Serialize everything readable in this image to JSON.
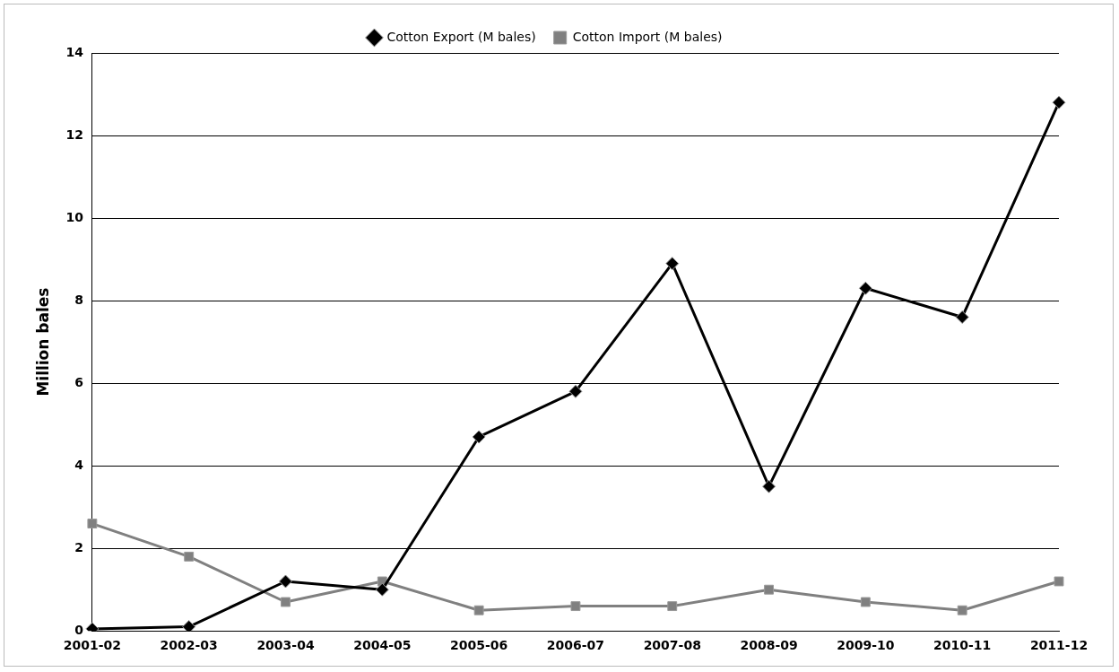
{
  "chart_data": {
    "type": "line",
    "ylabel": "Million bales",
    "categories": [
      "2001-02",
      "2002-03",
      "2003-04",
      "2004-05",
      "2005-06",
      "2006-07",
      "2007-08",
      "2008-09",
      "2009-10",
      "2010-11",
      "2011-12"
    ],
    "series": [
      {
        "name": "Cotton Export (M bales)",
        "color": "#000000",
        "marker": "diamond",
        "values": [
          0.05,
          0.1,
          1.2,
          1.0,
          4.7,
          5.8,
          8.9,
          3.5,
          8.3,
          7.6,
          12.8
        ]
      },
      {
        "name": "Cotton Import (M bales)",
        "color": "#808080",
        "marker": "square",
        "values": [
          2.6,
          1.8,
          0.7,
          1.2,
          0.5,
          0.6,
          0.6,
          1.0,
          0.7,
          0.5,
          1.2
        ]
      }
    ],
    "ylim": [
      0,
      14
    ],
    "yticks": [
      0,
      2,
      4,
      6,
      8,
      10,
      12,
      14
    ],
    "grid": "y",
    "legend": "top"
  }
}
